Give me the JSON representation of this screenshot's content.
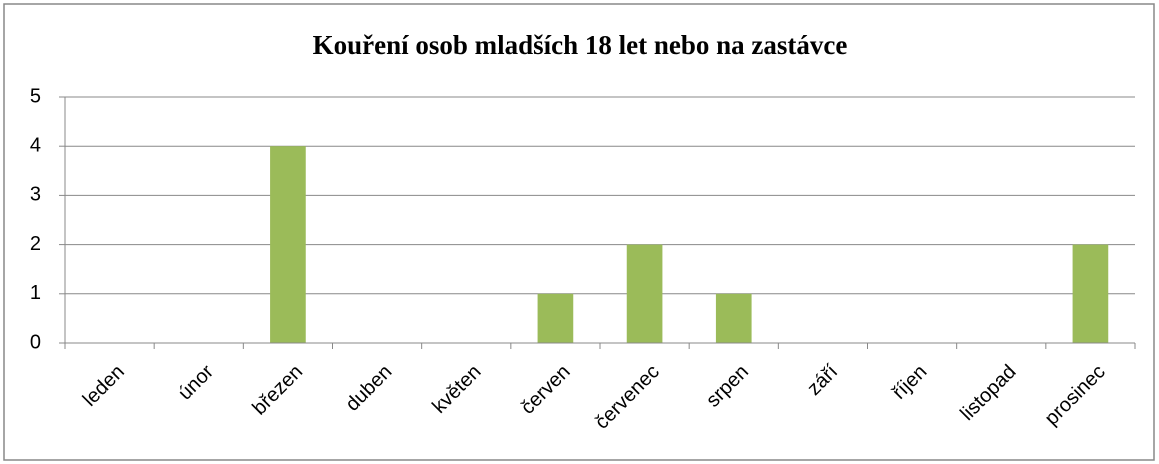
{
  "chart_data": {
    "type": "bar",
    "title": "Kouření osob mladších 18 let nebo na zastávce",
    "categories": [
      "leden",
      "únor",
      "březen",
      "duben",
      "květen",
      "červen",
      "červenec",
      "srpen",
      "září",
      "říjen",
      "listopad",
      "prosinec"
    ],
    "values": [
      0,
      0,
      4,
      0,
      0,
      1,
      2,
      1,
      0,
      0,
      0,
      2
    ],
    "color": "#9bbb59",
    "ylim": [
      0,
      5
    ],
    "yticks": [
      0,
      1,
      2,
      3,
      4,
      5
    ],
    "grid": true
  }
}
